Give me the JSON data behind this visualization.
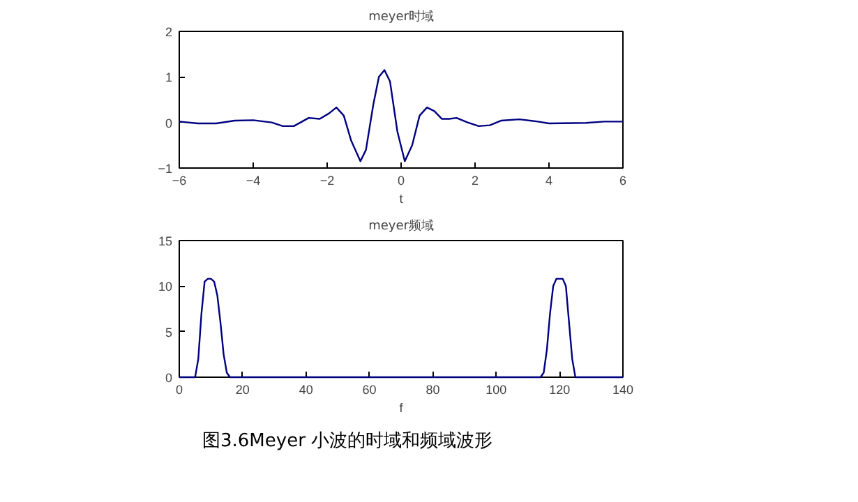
{
  "chart_data": [
    {
      "type": "line",
      "title": "meyer时域",
      "xlabel": "t",
      "xlim": [
        -6,
        6
      ],
      "xticks": [
        -6,
        -4,
        -2,
        0,
        2,
        4,
        6
      ],
      "ylim": [
        -1,
        2
      ],
      "yticks": [
        -1,
        0,
        1,
        2
      ],
      "grid": false,
      "series": [
        {
          "color": "#000080",
          "x": [
            -6,
            -5.5,
            -5,
            -4.5,
            -4,
            -3.5,
            -3.2,
            -2.9,
            -2.5,
            -2.2,
            -1.95,
            -1.75,
            -1.55,
            -1.35,
            -1.1,
            -0.95,
            -0.75,
            -0.6,
            -0.45,
            -0.3,
            -0.1,
            0.1,
            0.3,
            0.5,
            0.7,
            0.9,
            1.1,
            1.3,
            1.5,
            1.8,
            2.1,
            2.4,
            2.7,
            3.2,
            3.7,
            4,
            5,
            5.5,
            6
          ],
          "values": [
            0.02,
            -0.02,
            -0.02,
            0.04,
            0.05,
            0.0,
            -0.08,
            -0.08,
            0.1,
            0.08,
            0.2,
            0.33,
            0.15,
            -0.4,
            -0.85,
            -0.6,
            0.4,
            1.0,
            1.15,
            0.9,
            -0.2,
            -0.85,
            -0.5,
            0.15,
            0.33,
            0.25,
            0.08,
            0.08,
            0.1,
            0.0,
            -0.08,
            -0.06,
            0.04,
            0.07,
            0.02,
            -0.02,
            -0.01,
            0.02,
            0.02
          ]
        }
      ]
    },
    {
      "type": "line",
      "title": "meyer频域",
      "xlabel": "f",
      "xlim": [
        0,
        140
      ],
      "xticks": [
        0,
        20,
        40,
        60,
        80,
        100,
        120,
        140
      ],
      "ylim": [
        0,
        15
      ],
      "yticks": [
        0,
        5,
        10,
        15
      ],
      "grid": false,
      "series": [
        {
          "color": "#000080",
          "x": [
            0,
            5,
            6,
            7,
            8,
            9,
            10,
            11,
            12,
            13,
            14,
            15,
            16,
            20,
            114,
            115,
            116,
            117,
            118,
            119,
            120,
            121,
            122,
            123,
            124,
            125,
            140
          ],
          "values": [
            0,
            0,
            2,
            7,
            10.5,
            10.8,
            10.8,
            10.5,
            9,
            6,
            2.5,
            0.5,
            0,
            0,
            0,
            0.5,
            3,
            7,
            10,
            10.8,
            10.8,
            10.8,
            10,
            6,
            2,
            0,
            0
          ]
        }
      ],
      "annotations": [
        "图3.6Meyer 小波的时域和频域波形"
      ]
    }
  ]
}
